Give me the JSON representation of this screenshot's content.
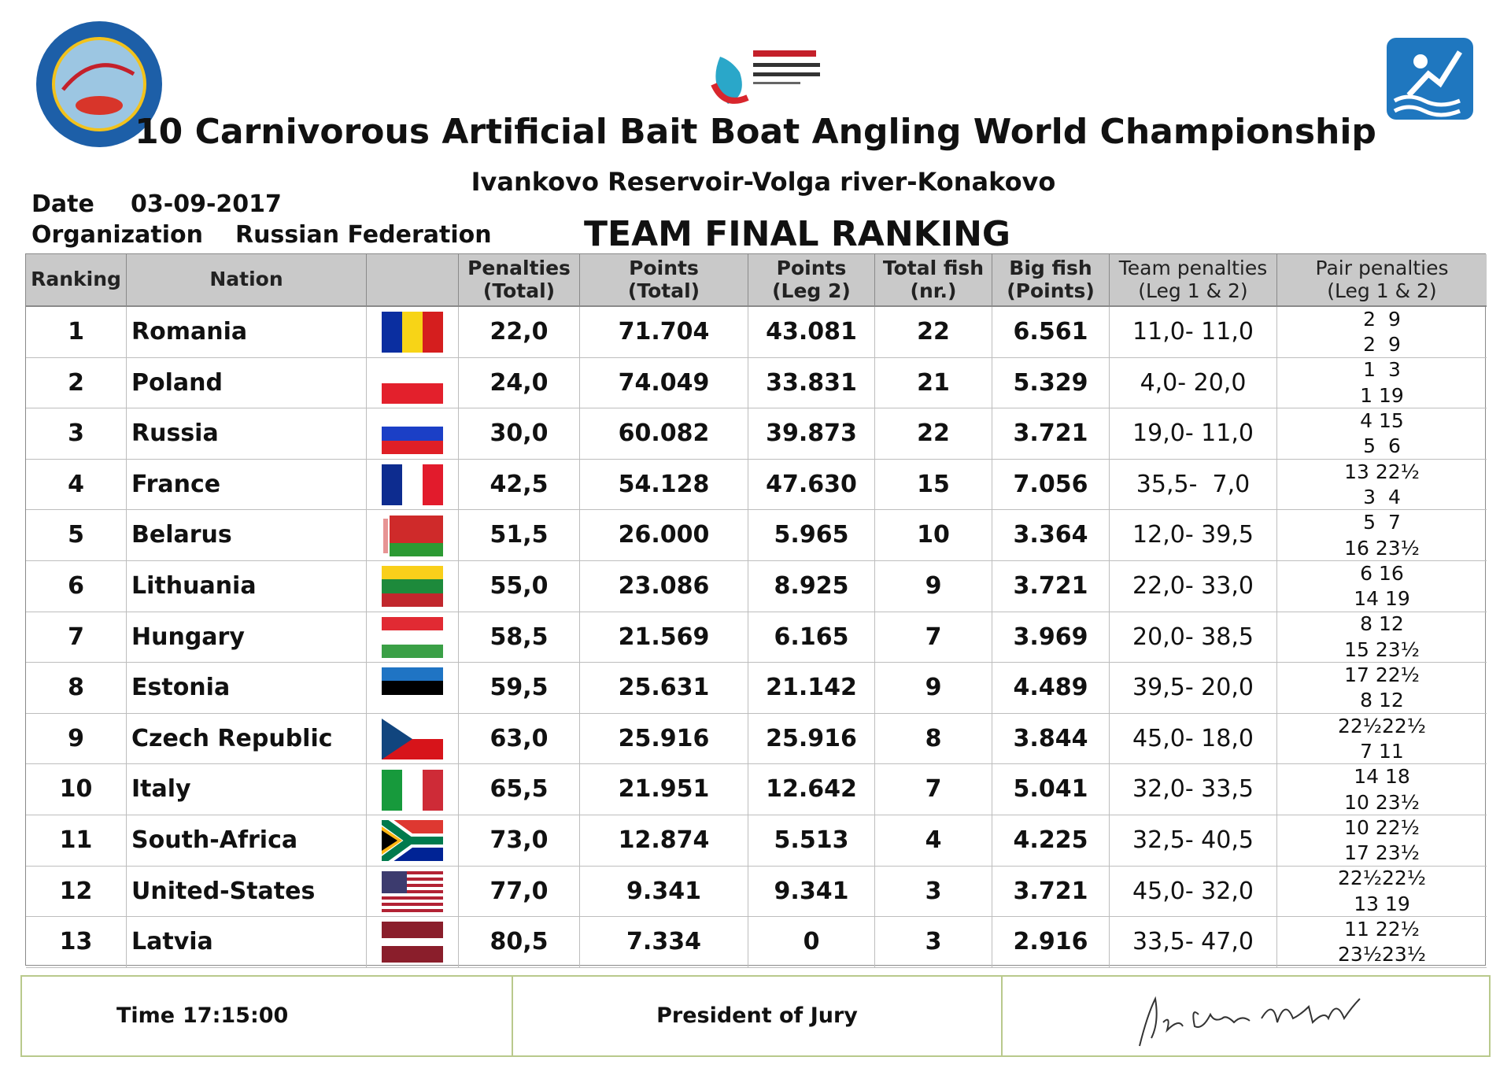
{
  "header": {
    "title": "10 Carnivorous Artificial Bait Boat Angling World Championship",
    "subtitle": "Ivankovo Reservoir-Volga river-Konakovo",
    "date_label": "Date",
    "date": "03-09-2017",
    "organization_label": "Organization",
    "organization": "Russian Federation",
    "ranking_title": "TEAM FINAL RANKING"
  },
  "table": {
    "headers": [
      [
        "Ranking"
      ],
      [
        "Nation"
      ],
      [
        "Penalties",
        "(Total)"
      ],
      [
        "Points",
        "(Total)"
      ],
      [
        "Points",
        "(Leg 2)"
      ],
      [
        "Total fish",
        "(nr.)"
      ],
      [
        "Big fish",
        "(Points)"
      ],
      [
        "Team penalties",
        "(Leg 1 & 2)"
      ],
      [
        "Pair penalties",
        "(Leg 1 & 2)"
      ]
    ],
    "rows": [
      {
        "ranking": "1",
        "nation": "Romania",
        "penalties_total": "22,0",
        "points_total": "71.704",
        "points_leg2": "43.081",
        "total_fish": "22",
        "big_fish": "6.561",
        "team_penalties": "11,0- 11,0",
        "pair_penalties": [
          "2  9",
          "2  9"
        ]
      },
      {
        "ranking": "2",
        "nation": "Poland",
        "penalties_total": "24,0",
        "points_total": "74.049",
        "points_leg2": "33.831",
        "total_fish": "21",
        "big_fish": "5.329",
        "team_penalties": "4,0- 20,0",
        "pair_penalties": [
          "1  3",
          "1 19"
        ]
      },
      {
        "ranking": "3",
        "nation": "Russia",
        "penalties_total": "30,0",
        "points_total": "60.082",
        "points_leg2": "39.873",
        "total_fish": "22",
        "big_fish": "3.721",
        "team_penalties": "19,0- 11,0",
        "pair_penalties": [
          "4 15",
          "5  6"
        ]
      },
      {
        "ranking": "4",
        "nation": "France",
        "penalties_total": "42,5",
        "points_total": "54.128",
        "points_leg2": "47.630",
        "total_fish": "15",
        "big_fish": "7.056",
        "team_penalties": "35,5-  7,0",
        "pair_penalties": [
          "13 22½",
          "3  4"
        ]
      },
      {
        "ranking": "5",
        "nation": "Belarus",
        "penalties_total": "51,5",
        "points_total": "26.000",
        "points_leg2": "5.965",
        "total_fish": "10",
        "big_fish": "3.364",
        "team_penalties": "12,0- 39,5",
        "pair_penalties": [
          "5  7",
          "16 23½"
        ]
      },
      {
        "ranking": "6",
        "nation": "Lithuania",
        "penalties_total": "55,0",
        "points_total": "23.086",
        "points_leg2": "8.925",
        "total_fish": "9",
        "big_fish": "3.721",
        "team_penalties": "22,0- 33,0",
        "pair_penalties": [
          "6 16",
          "14 19"
        ]
      },
      {
        "ranking": "7",
        "nation": "Hungary",
        "penalties_total": "58,5",
        "points_total": "21.569",
        "points_leg2": "6.165",
        "total_fish": "7",
        "big_fish": "3.969",
        "team_penalties": "20,0- 38,5",
        "pair_penalties": [
          "8 12",
          "15 23½"
        ]
      },
      {
        "ranking": "8",
        "nation": "Estonia",
        "penalties_total": "59,5",
        "points_total": "25.631",
        "points_leg2": "21.142",
        "total_fish": "9",
        "big_fish": "4.489",
        "team_penalties": "39,5- 20,0",
        "pair_penalties": [
          "17 22½",
          "8 12"
        ]
      },
      {
        "ranking": "9",
        "nation": "Czech Republic",
        "penalties_total": "63,0",
        "points_total": "25.916",
        "points_leg2": "25.916",
        "total_fish": "8",
        "big_fish": "3.844",
        "team_penalties": "45,0- 18,0",
        "pair_penalties": [
          "22½22½",
          "7 11"
        ]
      },
      {
        "ranking": "10",
        "nation": "Italy",
        "penalties_total": "65,5",
        "points_total": "21.951",
        "points_leg2": "12.642",
        "total_fish": "7",
        "big_fish": "5.041",
        "team_penalties": "32,0- 33,5",
        "pair_penalties": [
          "14 18",
          "10 23½"
        ]
      },
      {
        "ranking": "11",
        "nation": "South-Africa",
        "penalties_total": "73,0",
        "points_total": "12.874",
        "points_leg2": "5.513",
        "total_fish": "4",
        "big_fish": "4.225",
        "team_penalties": "32,5- 40,5",
        "pair_penalties": [
          "10 22½",
          "17 23½"
        ]
      },
      {
        "ranking": "12",
        "nation": "United-States",
        "penalties_total": "77,0",
        "points_total": "9.341",
        "points_leg2": "9.341",
        "total_fish": "3",
        "big_fish": "3.721",
        "team_penalties": "45,0- 32,0",
        "pair_penalties": [
          "22½22½",
          "13 19"
        ]
      },
      {
        "ranking": "13",
        "nation": "Latvia",
        "penalties_total": "80,5",
        "points_total": "7.334",
        "points_leg2": "0",
        "total_fish": "3",
        "big_fish": "2.916",
        "team_penalties": "33,5- 47,0",
        "pair_penalties": [
          "11 22½",
          "23½23½"
        ]
      }
    ]
  },
  "footer": {
    "time_label": "Time",
    "time": "17:15:00",
    "president": "President of Jury"
  }
}
